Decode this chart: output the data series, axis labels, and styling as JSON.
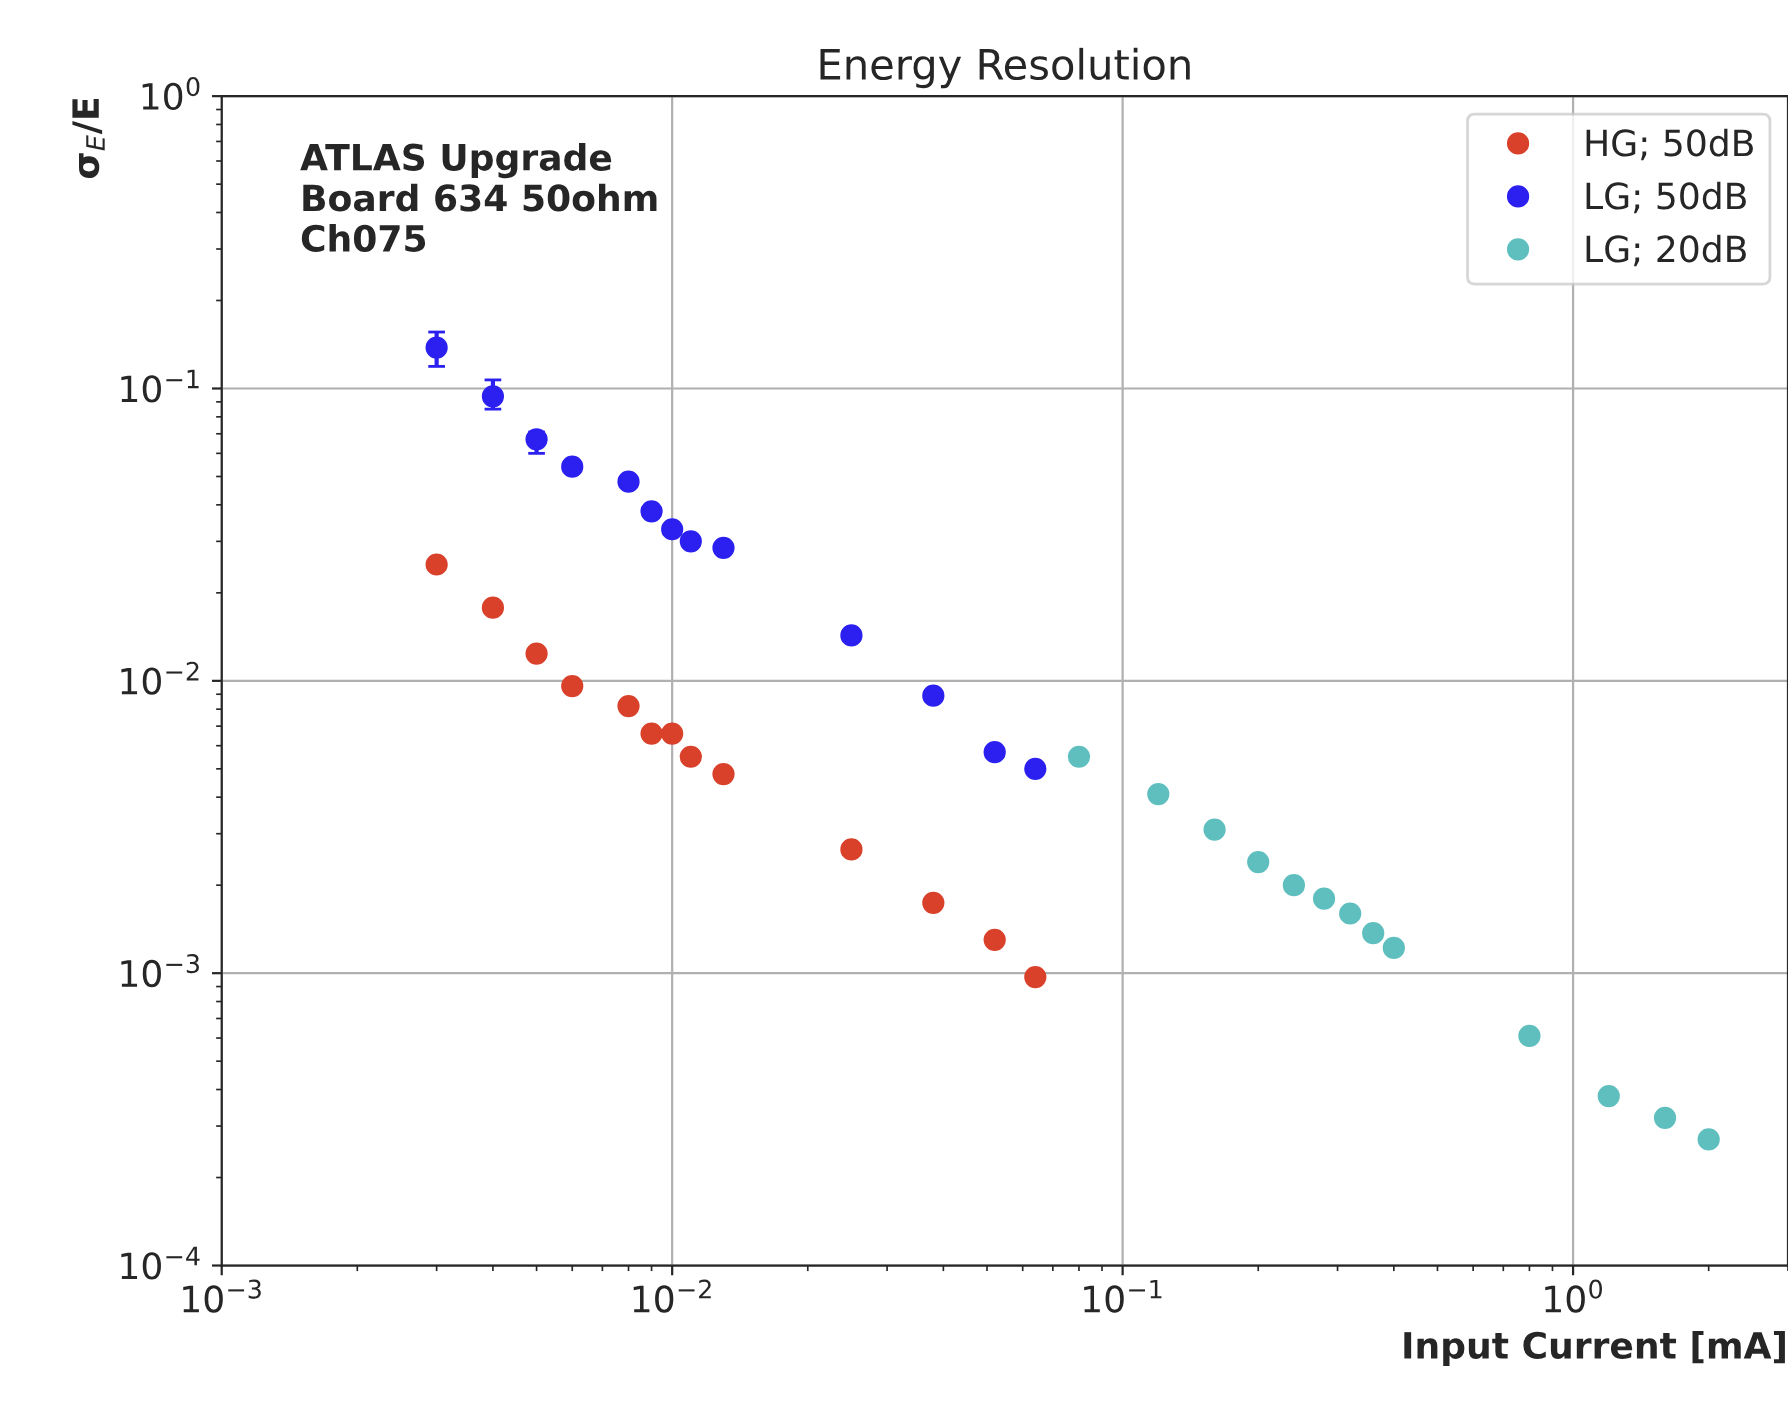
{
  "chart_data": {
    "type": "scatter",
    "title": "Energy Resolution",
    "xlabel": "Input Current [mA]",
    "ylabel": "σ$_{E}$/E",
    "log": "xy",
    "grid": true,
    "legend": "top right",
    "marker": "circle",
    "xlim": [
      0.001,
      3
    ],
    "ylim": [
      0.0001,
      1
    ],
    "xticks": [
      {
        "value": 0.001,
        "label": "10$^{−3}$"
      },
      {
        "value": 0.01,
        "label": "10$^{−2}$"
      },
      {
        "value": 0.1,
        "label": "10$^{−1}$"
      },
      {
        "value": 1,
        "label": "10$^{0}$"
      }
    ],
    "yticks": [
      {
        "value": 0.0001,
        "label": "10$^{−4}$"
      },
      {
        "value": 0.001,
        "label": "10$^{−3}$"
      },
      {
        "value": 0.01,
        "label": "10$^{−2}$"
      },
      {
        "value": 0.1,
        "label": "10$^{−1}$"
      },
      {
        "value": 1,
        "label": "10$^{0}$"
      }
    ],
    "annotations": [
      "ATLAS Upgrade\nBoard 634 50ohm\nCh075"
    ],
    "series": [
      {
        "name": "HG; 50dB",
        "color": "#d9412b",
        "x": [
          0.003,
          0.004,
          0.005,
          0.006,
          0.008,
          0.009,
          0.01,
          0.011,
          0.013,
          0.025,
          0.038,
          0.052,
          0.064
        ],
        "values": [
          0.025,
          0.0178,
          0.0124,
          0.0096,
          0.0082,
          0.0066,
          0.0066,
          0.0055,
          0.0048,
          0.00265,
          0.00174,
          0.0013,
          0.00097
        ]
      },
      {
        "name": "LG; 50dB",
        "color": "#2b20f0",
        "x": [
          0.003,
          0.004,
          0.005,
          0.006,
          0.008,
          0.009,
          0.01,
          0.011,
          0.013,
          0.025,
          0.038,
          0.052,
          0.064
        ],
        "values": [
          0.138,
          0.094,
          0.067,
          0.054,
          0.048,
          0.038,
          0.033,
          0.03,
          0.0285,
          0.0143,
          0.0089,
          0.0057,
          0.005
        ],
        "errors": [
          [
            0.119,
            0.156
          ],
          [
            0.085,
            0.107
          ],
          [
            0.06,
            0.071
          ],
          null,
          null,
          null,
          null,
          null,
          null,
          null,
          null,
          null,
          null
        ]
      },
      {
        "name": "LG; 20dB",
        "color": "#5fbfbf",
        "x": [
          0.08,
          0.12,
          0.16,
          0.2,
          0.24,
          0.28,
          0.32,
          0.36,
          0.4,
          0.8,
          1.2,
          1.6,
          2.0
        ],
        "values": [
          0.0055,
          0.0041,
          0.0031,
          0.0024,
          0.002,
          0.0018,
          0.0016,
          0.00137,
          0.00122,
          0.00061,
          0.00038,
          0.00032,
          0.00027
        ]
      }
    ]
  }
}
